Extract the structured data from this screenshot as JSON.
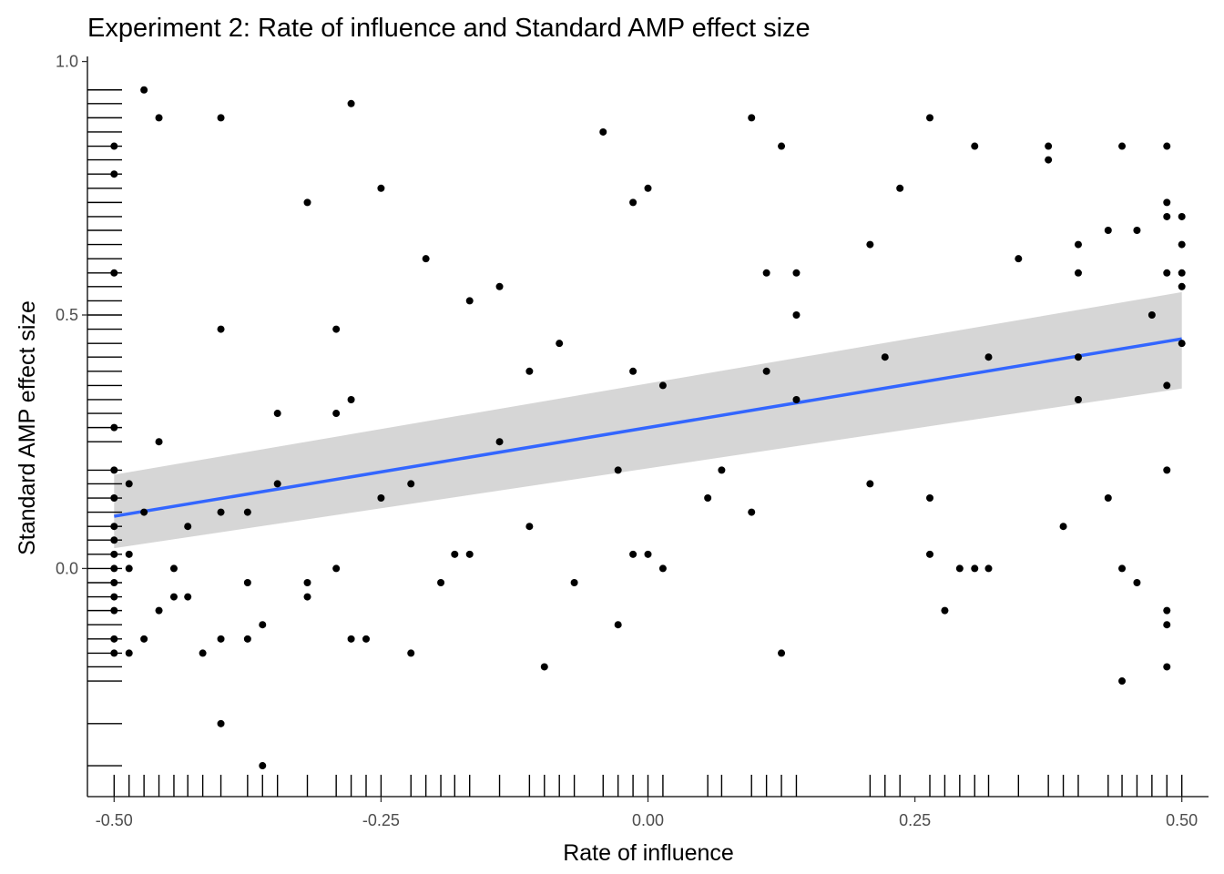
{
  "chart_data": {
    "type": "scatter",
    "title": "Experiment 2: Rate of influence and Standard AMP effect size",
    "xlabel": "Rate of influence",
    "ylabel": "Standard AMP effect size",
    "xlim": [
      -0.525,
      0.525
    ],
    "ylim": [
      -0.45,
      1.01
    ],
    "x_ticks": [
      -0.5,
      -0.25,
      0,
      0.25,
      0.5
    ],
    "x_tick_labels": [
      "-0.50",
      "-0.25",
      "0.00",
      "0.25",
      "0.50"
    ],
    "y_ticks": [
      0,
      0.5,
      1
    ],
    "y_tick_labels": [
      "0.0",
      "0.5",
      "1.0"
    ],
    "grid": false,
    "legend": "none",
    "rug": {
      "x": true,
      "y": true
    },
    "smooth": {
      "method": "lm",
      "color": "#3366FF",
      "band_color": "#999999",
      "x": [
        -0.5,
        0.5
      ],
      "fit": [
        0.103,
        0.453
      ],
      "ci_lower": [
        0.04,
        0.355
      ],
      "ci_upper": [
        0.185,
        0.545
      ]
    },
    "points": [
      [
        -0.5,
        0.833
      ],
      [
        -0.5,
        0.778
      ],
      [
        -0.5,
        0.583
      ],
      [
        -0.5,
        0.278
      ],
      [
        -0.5,
        0.194
      ],
      [
        -0.5,
        0.139
      ],
      [
        -0.5,
        0.083
      ],
      [
        -0.5,
        0.056
      ],
      [
        -0.5,
        0.028
      ],
      [
        -0.5,
        0.0
      ],
      [
        -0.5,
        -0.028
      ],
      [
        -0.5,
        -0.056
      ],
      [
        -0.5,
        -0.083
      ],
      [
        -0.5,
        -0.139
      ],
      [
        -0.5,
        -0.167
      ],
      [
        -0.486,
        0.167
      ],
      [
        -0.486,
        0.028
      ],
      [
        -0.486,
        0.0
      ],
      [
        -0.486,
        -0.167
      ],
      [
        -0.472,
        0.944
      ],
      [
        -0.472,
        0.111
      ],
      [
        -0.472,
        -0.139
      ],
      [
        -0.458,
        0.889
      ],
      [
        -0.458,
        0.25
      ],
      [
        -0.458,
        -0.083
      ],
      [
        -0.444,
        0.0
      ],
      [
        -0.444,
        -0.056
      ],
      [
        -0.431,
        0.083
      ],
      [
        -0.431,
        -0.056
      ],
      [
        -0.417,
        -0.167
      ],
      [
        -0.4,
        0.889
      ],
      [
        -0.4,
        0.472
      ],
      [
        -0.4,
        0.111
      ],
      [
        -0.4,
        -0.139
      ],
      [
        -0.4,
        -0.306
      ],
      [
        -0.375,
        0.111
      ],
      [
        -0.375,
        -0.028
      ],
      [
        -0.375,
        -0.139
      ],
      [
        -0.361,
        -0.111
      ],
      [
        -0.361,
        -0.389
      ],
      [
        -0.347,
        0.306
      ],
      [
        -0.347,
        0.167
      ],
      [
        -0.319,
        0.722
      ],
      [
        -0.319,
        -0.028
      ],
      [
        -0.319,
        -0.056
      ],
      [
        -0.292,
        0.472
      ],
      [
        -0.292,
        0.306
      ],
      [
        -0.292,
        0.0
      ],
      [
        -0.278,
        0.917
      ],
      [
        -0.278,
        0.333
      ],
      [
        -0.278,
        -0.139
      ],
      [
        -0.264,
        -0.139
      ],
      [
        -0.25,
        0.75
      ],
      [
        -0.25,
        0.139
      ],
      [
        -0.222,
        0.167
      ],
      [
        -0.222,
        -0.167
      ],
      [
        -0.208,
        0.611
      ],
      [
        -0.194,
        -0.028
      ],
      [
        -0.181,
        0.028
      ],
      [
        -0.167,
        0.528
      ],
      [
        -0.167,
        0.028
      ],
      [
        -0.139,
        0.556
      ],
      [
        -0.139,
        0.25
      ],
      [
        -0.111,
        0.389
      ],
      [
        -0.111,
        0.083
      ],
      [
        -0.097,
        -0.194
      ],
      [
        -0.083,
        0.444
      ],
      [
        -0.069,
        -0.028
      ],
      [
        -0.042,
        0.861
      ],
      [
        -0.028,
        0.194
      ],
      [
        -0.028,
        -0.111
      ],
      [
        -0.014,
        0.722
      ],
      [
        -0.014,
        0.389
      ],
      [
        -0.014,
        0.028
      ],
      [
        0.0,
        0.75
      ],
      [
        0.0,
        0.028
      ],
      [
        0.014,
        0.361
      ],
      [
        0.014,
        0.0
      ],
      [
        0.056,
        0.139
      ],
      [
        0.069,
        0.194
      ],
      [
        0.097,
        0.889
      ],
      [
        0.097,
        0.111
      ],
      [
        0.111,
        0.583
      ],
      [
        0.111,
        0.389
      ],
      [
        0.125,
        0.833
      ],
      [
        0.125,
        -0.167
      ],
      [
        0.139,
        0.583
      ],
      [
        0.139,
        0.5
      ],
      [
        0.139,
        0.333
      ],
      [
        0.208,
        0.639
      ],
      [
        0.208,
        0.167
      ],
      [
        0.222,
        0.417
      ],
      [
        0.236,
        0.75
      ],
      [
        0.264,
        0.889
      ],
      [
        0.264,
        0.139
      ],
      [
        0.264,
        0.028
      ],
      [
        0.278,
        -0.083
      ],
      [
        0.292,
        0.0
      ],
      [
        0.306,
        0.833
      ],
      [
        0.306,
        0.0
      ],
      [
        0.319,
        0.417
      ],
      [
        0.319,
        0.0
      ],
      [
        0.347,
        0.611
      ],
      [
        0.375,
        0.833
      ],
      [
        0.375,
        0.806
      ],
      [
        0.389,
        0.083
      ],
      [
        0.403,
        0.639
      ],
      [
        0.403,
        0.583
      ],
      [
        0.403,
        0.417
      ],
      [
        0.403,
        0.333
      ],
      [
        0.431,
        0.667
      ],
      [
        0.431,
        0.139
      ],
      [
        0.444,
        0.833
      ],
      [
        0.444,
        0.0
      ],
      [
        0.444,
        -0.222
      ],
      [
        0.458,
        0.667
      ],
      [
        0.458,
        -0.028
      ],
      [
        0.472,
        0.5
      ],
      [
        0.486,
        0.833
      ],
      [
        0.486,
        0.722
      ],
      [
        0.486,
        0.694
      ],
      [
        0.486,
        0.583
      ],
      [
        0.486,
        0.361
      ],
      [
        0.486,
        0.194
      ],
      [
        0.486,
        -0.083
      ],
      [
        0.486,
        -0.111
      ],
      [
        0.486,
        -0.194
      ],
      [
        0.5,
        0.694
      ],
      [
        0.5,
        0.639
      ],
      [
        0.5,
        0.583
      ],
      [
        0.5,
        0.556
      ],
      [
        0.5,
        0.444
      ]
    ]
  }
}
